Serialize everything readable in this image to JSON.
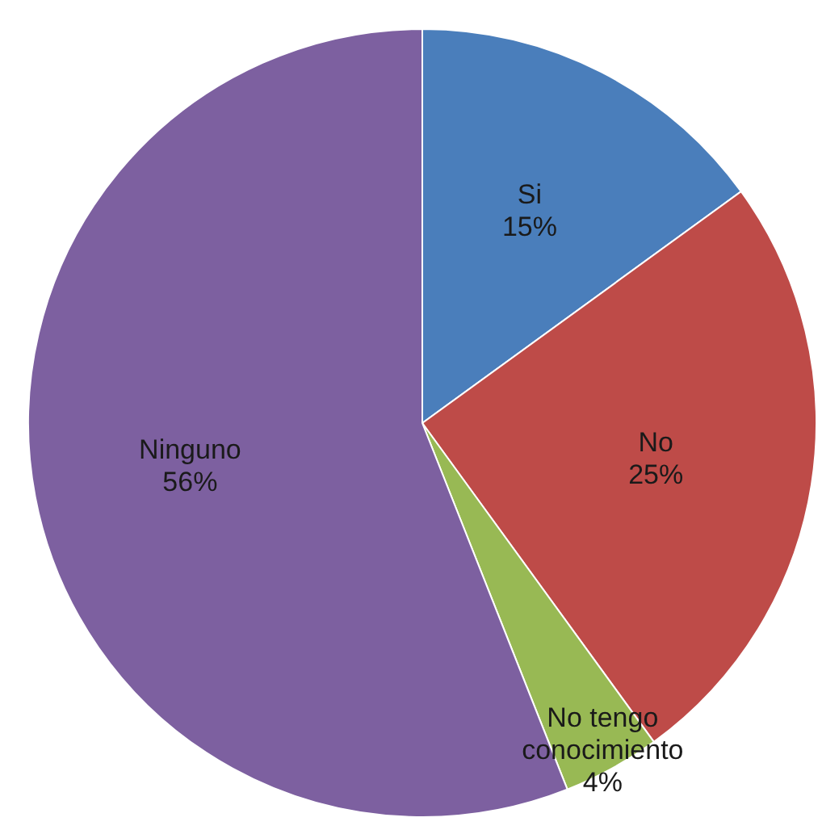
{
  "chart_data": {
    "type": "pie",
    "categories": [
      "Si",
      "No",
      "No tengo conocimiento",
      "Ninguno"
    ],
    "values": [
      15,
      25,
      4,
      56
    ],
    "value_labels": [
      "15%",
      "25%",
      "4%",
      "56%"
    ],
    "colors": [
      "#4a7ebb",
      "#be4b48",
      "#98b954",
      "#7d60a0"
    ],
    "legend": false
  }
}
